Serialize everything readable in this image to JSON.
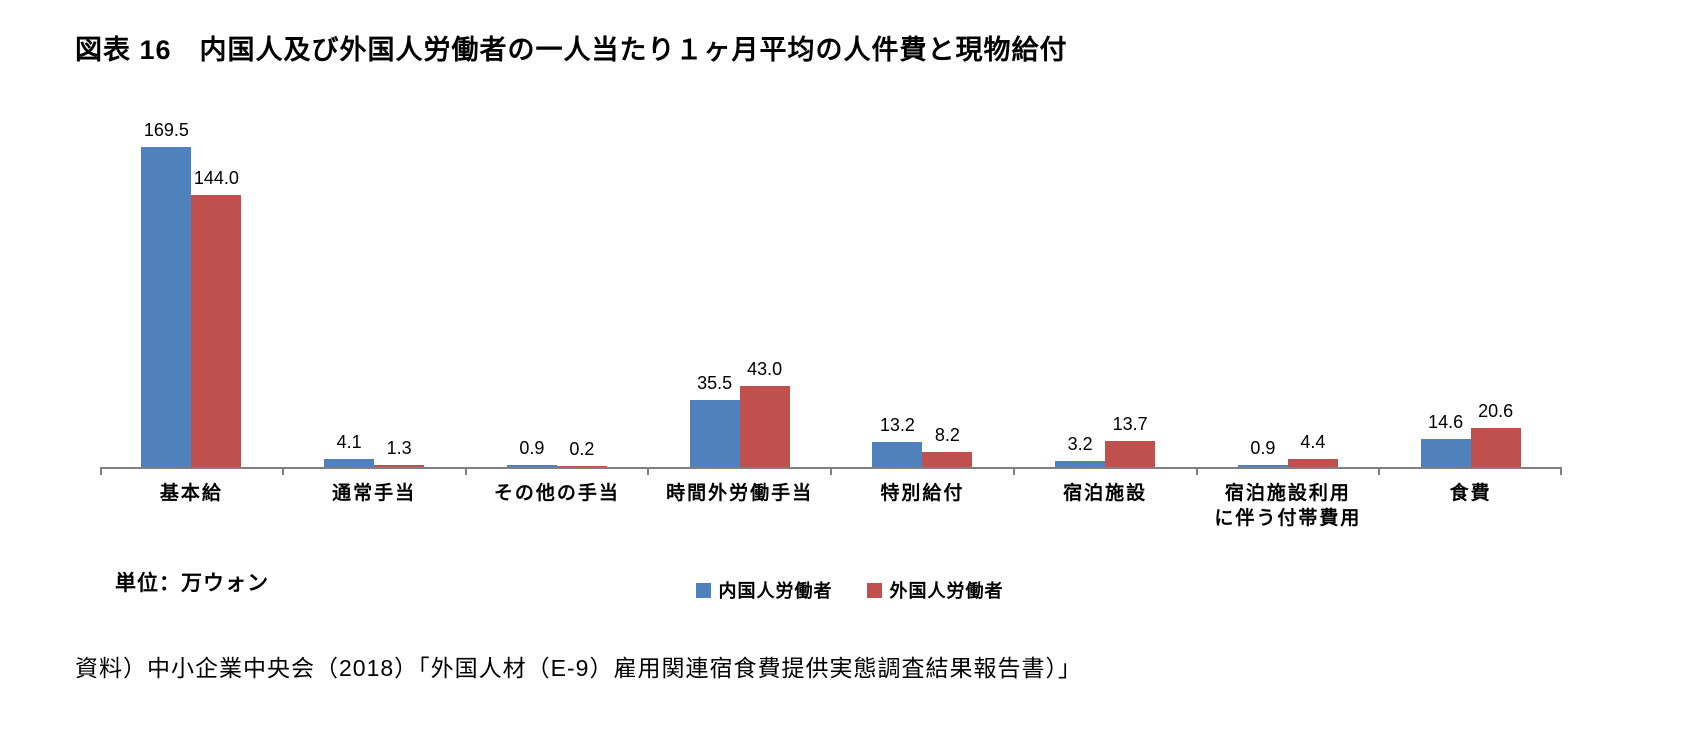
{
  "title": "図表 16　内国人及び外国人労働者の一人当たり１ヶ月平均の人件費と現物給付",
  "unit_label": "単位：万ウォン",
  "source": "資料）中小企業中央会（2018）「外国人材（E-9）雇用関連宿食費提供実態調査結果報告書）」",
  "colors": {
    "domestic": "#4F81BD",
    "foreign": "#C0504D",
    "axis": "#808080"
  },
  "chart_data": {
    "type": "bar",
    "categories": [
      "基本給",
      "通常手当",
      "その他の手当",
      "時間外労働手当",
      "特別給付",
      "宿泊施設",
      "宿泊施設利用\nに伴う付帯費用",
      "食費"
    ],
    "series": [
      {
        "name": "内国人労働者",
        "color": "#4F81BD",
        "values": [
          169.5,
          4.1,
          0.9,
          35.5,
          13.2,
          3.2,
          0.9,
          14.6
        ]
      },
      {
        "name": "外国人労働者",
        "color": "#C0504D",
        "values": [
          144.0,
          1.3,
          0.2,
          43.0,
          8.2,
          13.7,
          4.4,
          20.6
        ]
      }
    ],
    "title": "図表 16　内国人及び外国人労働者の一人当たり１ヶ月平均の人件費と現物給付",
    "xlabel": "",
    "ylabel": "万ウォン",
    "ylim": [
      0,
      180
    ],
    "grid": false,
    "value_labels": true,
    "legend_position": "bottom"
  }
}
